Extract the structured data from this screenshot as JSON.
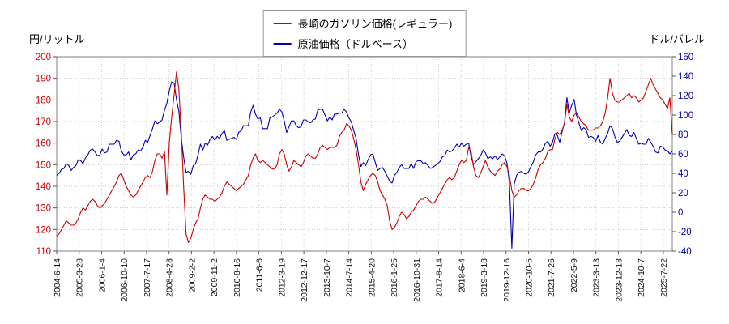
{
  "chart_data": {
    "type": "line",
    "title": "",
    "grid": true,
    "legend_position": "top-center",
    "left_axis": {
      "label": "円/リットル",
      "min": 110,
      "max": 200,
      "ticks": [
        200,
        190,
        180,
        170,
        160,
        150,
        140,
        130,
        120,
        110
      ],
      "color": "#cc0000"
    },
    "right_axis": {
      "label": "ドル/バレル",
      "min": -40,
      "max": 160,
      "ticks": [
        160,
        140,
        120,
        100,
        80,
        60,
        40,
        20,
        0,
        -20,
        -40
      ],
      "color": "#0000b0"
    },
    "x_ticks": [
      "2004-6-14",
      "2005-3-28",
      "2006-1-4",
      "2006-10-10",
      "2007-7-17",
      "2008-4-28",
      "2009-2-2",
      "2009-11-2",
      "2010-8-16",
      "2011-6-6",
      "2012-3-19",
      "2012-12-17",
      "2013-10-7",
      "2014-7-14",
      "2015-4-20",
      "2016-1-25",
      "2016-10-31",
      "2017-8-14",
      "2018-6-4",
      "2019-3-18",
      "2019-12-16",
      "2020-10-5",
      "2021-7-26",
      "2022-5-9",
      "2023-3-13",
      "2023-12-18",
      "2024-10-7",
      "2025-7-22"
    ],
    "x_tick_spacing_months": 9.38,
    "x_range": {
      "start": "2004-06",
      "end": "2025-11",
      "interval": "monthly"
    },
    "series": [
      {
        "name": "長崎のガソリン価格(レギュラー)",
        "color": "#cc0000",
        "axis": "left",
        "values": [
          117,
          118,
          120,
          122,
          124,
          123,
          122,
          122,
          123,
          125,
          128,
          130,
          129,
          131,
          133,
          134,
          133,
          131,
          130,
          131,
          132,
          134,
          136,
          138,
          140,
          142,
          145,
          146,
          143,
          140,
          138,
          136,
          135,
          136,
          138,
          140,
          142,
          144,
          145,
          144,
          147,
          152,
          155,
          155,
          153,
          156,
          136,
          160,
          172,
          182,
          193,
          185,
          165,
          140,
          118,
          114,
          116,
          120,
          123,
          125,
          130,
          134,
          136,
          135,
          134,
          134,
          133,
          134,
          135,
          137,
          140,
          142,
          141,
          140,
          139,
          138,
          139,
          140,
          141,
          143,
          145,
          150,
          153,
          155,
          152,
          151,
          152,
          151,
          150,
          149,
          148,
          148,
          150,
          155,
          157,
          155,
          150,
          147,
          149,
          152,
          151,
          150,
          149,
          151,
          154,
          155,
          154,
          153,
          153,
          155,
          158,
          159,
          158,
          157,
          158,
          158,
          158,
          159,
          163,
          165,
          166,
          169,
          168,
          166,
          162,
          157,
          150,
          142,
          138,
          141,
          143,
          145,
          146,
          145,
          142,
          138,
          136,
          134,
          131,
          124,
          120,
          121,
          123,
          126,
          128,
          127,
          125,
          126,
          128,
          129,
          131,
          133,
          134,
          134,
          135,
          134,
          133,
          132,
          133,
          135,
          137,
          139,
          141,
          143,
          144,
          143,
          144,
          147,
          150,
          152,
          151,
          152,
          158,
          156,
          149,
          145,
          144,
          146,
          149,
          152,
          149,
          147,
          146,
          145,
          147,
          148,
          150,
          151,
          149,
          145,
          138,
          135,
          136,
          138,
          139,
          139,
          138,
          138,
          139,
          141,
          144,
          148,
          150,
          151,
          153,
          156,
          157,
          157,
          162,
          165,
          164,
          166,
          169,
          178,
          172,
          170,
          173,
          174,
          172,
          170,
          169,
          168,
          166,
          166,
          166,
          167,
          167,
          168,
          170,
          174,
          181,
          190,
          183,
          180,
          179,
          179,
          180,
          181,
          182,
          183,
          181,
          182,
          181,
          179,
          180,
          181,
          184,
          187,
          190,
          187,
          185,
          183,
          181,
          180,
          178,
          176,
          181,
          164
        ]
      },
      {
        "name": "原油価格（ドルベース）",
        "color": "#0000b0",
        "axis": "right",
        "values": [
          38,
          40,
          44,
          45,
          50,
          48,
          43,
          46,
          48,
          54,
          53,
          50,
          56,
          59,
          64,
          65,
          62,
          58,
          59,
          65,
          61,
          62,
          70,
          70,
          70,
          74,
          73,
          63,
          59,
          59,
          62,
          54,
          59,
          60,
          64,
          63,
          67,
          74,
          72,
          79,
          86,
          94,
          91,
          93,
          95,
          105,
          112,
          125,
          134,
          133,
          116,
          104,
          76,
          57,
          41,
          42,
          39,
          48,
          50,
          59,
          70,
          64,
          71,
          69,
          75,
          78,
          74,
          78,
          76,
          81,
          84,
          74,
          75,
          76,
          77,
          75,
          82,
          84,
          89,
          89,
          89,
          103,
          110,
          101,
          96,
          97,
          86,
          86,
          86,
          97,
          98,
          100,
          102,
          106,
          103,
          94,
          82,
          88,
          94,
          94,
          89,
          87,
          88,
          95,
          95,
          93,
          92,
          95,
          96,
          105,
          106,
          106,
          100,
          94,
          98,
          95,
          101,
          101,
          102,
          102,
          106,
          103,
          97,
          93,
          84,
          76,
          59,
          47,
          51,
          48,
          54,
          59,
          60,
          51,
          43,
          45,
          46,
          42,
          37,
          32,
          30,
          38,
          41,
          46,
          49,
          45,
          45,
          45,
          50,
          45,
          52,
          53,
          53,
          50,
          51,
          48,
          45,
          46,
          48,
          50,
          52,
          57,
          58,
          64,
          62,
          63,
          66,
          70,
          67,
          71,
          68,
          70,
          71,
          57,
          49,
          52,
          55,
          58,
          64,
          61,
          55,
          57,
          55,
          58,
          54,
          57,
          60,
          58,
          50,
          30,
          -37,
          29,
          38,
          41,
          42,
          40,
          39,
          42,
          47,
          52,
          59,
          62,
          62,
          65,
          71,
          73,
          68,
          72,
          81,
          79,
          72,
          83,
          92,
          118,
          102,
          110,
          116,
          100,
          92,
          84,
          87,
          85,
          77,
          78,
          77,
          73,
          79,
          72,
          70,
          76,
          81,
          89,
          86,
          78,
          72,
          73,
          77,
          81,
          85,
          79,
          78,
          82,
          76,
          70,
          71,
          70,
          70,
          76,
          72,
          68,
          62,
          61,
          68,
          67,
          64,
          63,
          60,
          63
        ]
      }
    ]
  }
}
